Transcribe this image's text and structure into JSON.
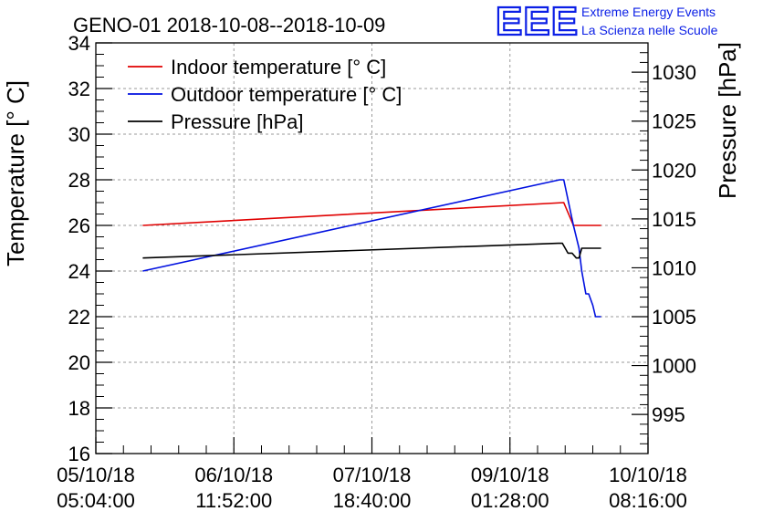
{
  "chart_data": {
    "type": "line",
    "title": "GENO-01 2018-10-08--2018-10-09",
    "ylabel": "Temperature [° C]",
    "y2label": "Pressure [hPa]",
    "xlabel": "",
    "x_range": [
      0,
      4
    ],
    "ylim": [
      16,
      34
    ],
    "y2lim": [
      991,
      1033
    ],
    "x_ticks": [
      0,
      1,
      2,
      3,
      4
    ],
    "x_tick_labels": [
      [
        "05/10/18",
        "05:04:00"
      ],
      [
        "06/10/18",
        "11:52:00"
      ],
      [
        "07/10/18",
        "18:40:00"
      ],
      [
        "09/10/18",
        "01:28:00"
      ],
      [
        "10/10/18",
        "08:16:00"
      ]
    ],
    "y_ticks": [
      16,
      18,
      20,
      22,
      24,
      26,
      28,
      30,
      32,
      34
    ],
    "y2_ticks": [
      995,
      1000,
      1005,
      1010,
      1015,
      1020,
      1025,
      1030
    ],
    "grid": true,
    "legend_position": "top-left",
    "series": [
      {
        "name": "Indoor temperature [° C]",
        "color": "#e00000",
        "axis": "left",
        "x": [
          0.34,
          3.39,
          3.46,
          3.66
        ],
        "y": [
          26.0,
          27.0,
          26.0,
          26.0
        ]
      },
      {
        "name": "Outdoor temperature [° C]",
        "color": "#0010e0",
        "axis": "left",
        "x": [
          0.34,
          3.36,
          3.39,
          3.46,
          3.5,
          3.52,
          3.55,
          3.57,
          3.6,
          3.62,
          3.66
        ],
        "y": [
          24.0,
          28.0,
          28.0,
          26.0,
          25.0,
          24.0,
          23.0,
          23.0,
          22.5,
          22.0,
          22.0
        ]
      },
      {
        "name": "Pressure [hPa]",
        "color": "#000000",
        "axis": "right",
        "x": [
          0.34,
          3.35,
          3.38,
          3.42,
          3.45,
          3.48,
          3.5,
          3.52,
          3.66
        ],
        "y": [
          1011.0,
          1012.5,
          1012.5,
          1011.5,
          1011.5,
          1011.0,
          1011.0,
          1012.0,
          1012.0
        ]
      }
    ]
  },
  "logo": {
    "text": "EEE",
    "line1": "Extreme Energy Events",
    "line2": "La Scienza nelle Scuole",
    "color": "#0b1fe6"
  }
}
